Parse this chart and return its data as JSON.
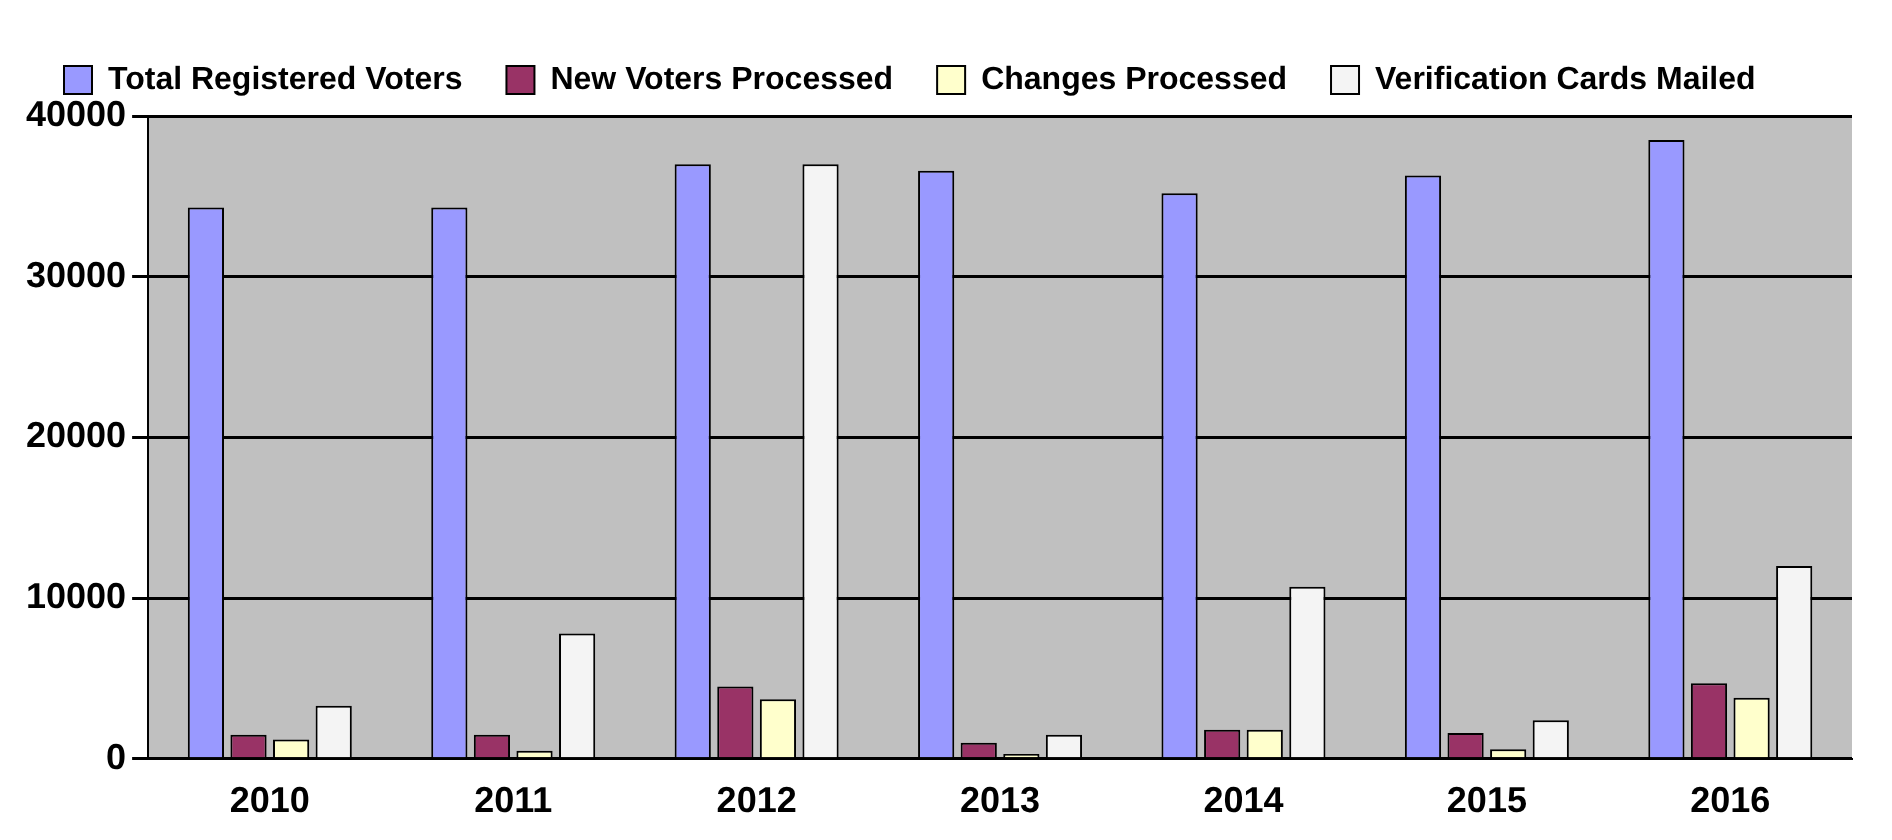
{
  "chart_data": {
    "type": "bar",
    "categories": [
      "2010",
      "2011",
      "2012",
      "2013",
      "2014",
      "2015",
      "2016"
    ],
    "series": [
      {
        "name": "Total Registered Voters",
        "color": "#9999ff",
        "values": [
          34300,
          34300,
          37000,
          36600,
          35200,
          36300,
          38500
        ]
      },
      {
        "name": "New Voters Processed",
        "color": "#993366",
        "values": [
          1500,
          1500,
          4500,
          1000,
          1800,
          1600,
          4700
        ]
      },
      {
        "name": "Changes Processed",
        "color": "#ffffcc",
        "values": [
          1200,
          500,
          3700,
          300,
          1800,
          600,
          3800
        ]
      },
      {
        "name": "Verification Cards Mailed",
        "color": "#f4f4f4",
        "values": [
          3300,
          7800,
          37000,
          1500,
          10700,
          2400,
          12000
        ]
      }
    ],
    "ylim": [
      0,
      40000
    ],
    "yticks": [
      0,
      10000,
      20000,
      30000,
      40000
    ],
    "grid": "y",
    "legend": "top"
  }
}
